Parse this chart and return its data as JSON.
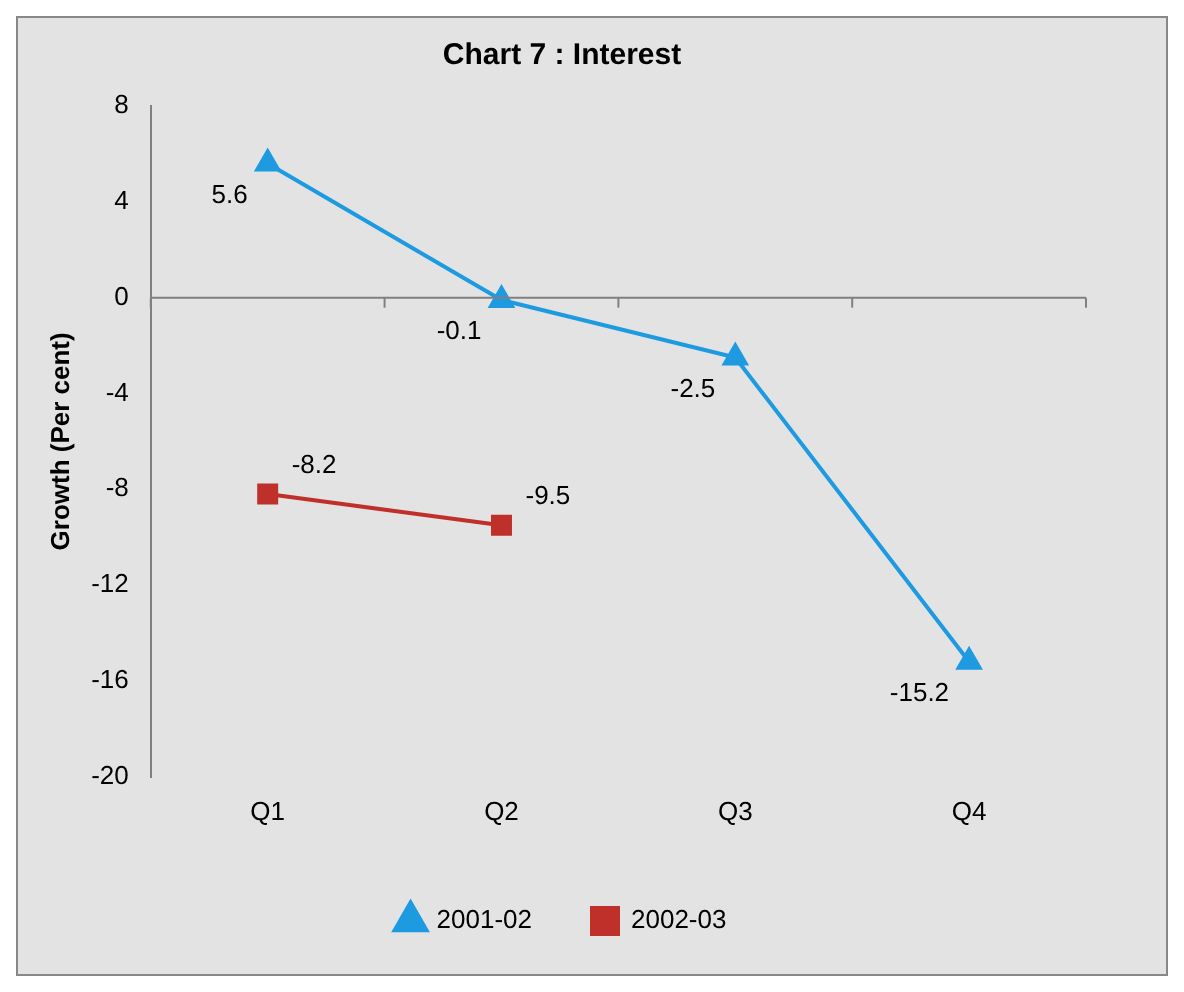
{
  "chart_data": {
    "type": "line",
    "title": "Chart 7 : Interest",
    "ylabel": "Growth (Per cent)",
    "categories": [
      "Q1",
      "Q2",
      "Q3",
      "Q4"
    ],
    "series": [
      {
        "name": "2001-02",
        "color": "#1e9be0",
        "values": [
          5.6,
          -0.1,
          -2.5,
          -15.2
        ],
        "marker": "triangle"
      },
      {
        "name": "2002-03",
        "color": "#c0302a",
        "values": [
          -8.2,
          -9.5,
          null,
          null
        ],
        "marker": "square"
      }
    ],
    "ylim": [
      -20,
      8
    ],
    "yticks": [
      -20,
      -16,
      -12,
      -8,
      -4,
      0,
      4,
      8
    ],
    "legend": "bottom",
    "data_labels": true,
    "line_style": "solid"
  }
}
